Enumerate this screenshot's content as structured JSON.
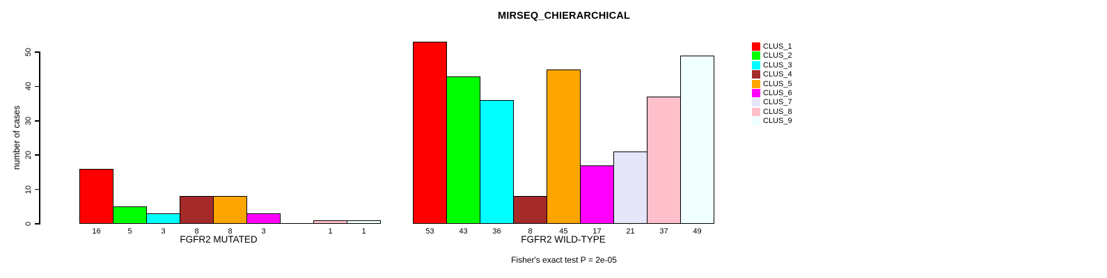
{
  "chart_data": {
    "type": "bar",
    "title": "MIRSEQ_CHIERARCHICAL",
    "ylabel": "number of cases",
    "ylim": [
      0,
      50
    ],
    "yticks": [
      0,
      10,
      20,
      30,
      40,
      50
    ],
    "grid": false,
    "legend_position": "right",
    "clusters": [
      "CLUS_1",
      "CLUS_2",
      "CLUS_3",
      "CLUS_4",
      "CLUS_5",
      "CLUS_6",
      "CLUS_7",
      "CLUS_8",
      "CLUS_9"
    ],
    "palette": [
      "#FF0000",
      "#00FF00",
      "#00FFFF",
      "#A52A2A",
      "#FFA500",
      "#FF00FF",
      "#E6E6FA",
      "#FFC0CB",
      "#F0FFFF"
    ],
    "groups": [
      {
        "label": "FGFR2 MUTATED",
        "values": [
          16,
          5,
          3,
          8,
          8,
          3,
          0,
          1,
          1
        ]
      },
      {
        "label": "FGFR2 WILD-TYPE",
        "values": [
          53,
          43,
          36,
          8,
          45,
          17,
          21,
          37,
          49
        ]
      }
    ],
    "annotation": "Fisher's exact test P = 2e-05",
    "colors": {
      "axis": "#000000",
      "text": "#000000",
      "background": "#FFFFFF"
    }
  }
}
